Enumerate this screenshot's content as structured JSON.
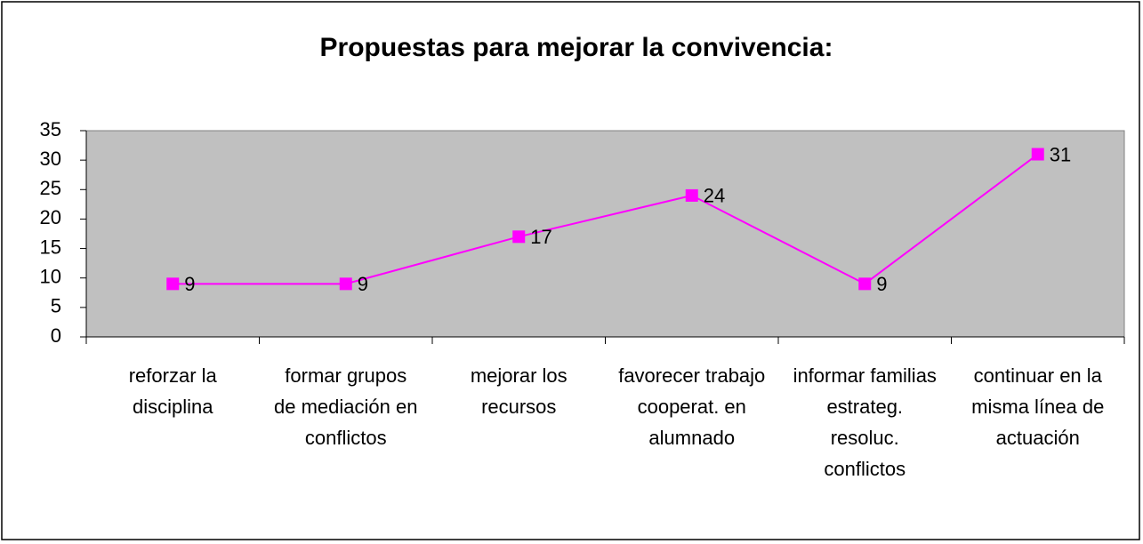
{
  "chart_data": {
    "type": "line",
    "title": "Propuestas para mejorar la convivencia:",
    "categories": [
      "reforzar la disciplina",
      "formar grupos de mediación en conflictos",
      "mejorar los recursos",
      "favorecer trabajo cooperat. en alumnado",
      "informar familias estrateg. resoluc. conflictos",
      "continuar en la misma línea de actuación"
    ],
    "series": [
      {
        "color": "#ff00ff",
        "values": [
          9,
          9,
          17,
          24,
          9,
          31
        ]
      }
    ],
    "ylim": [
      0,
      35
    ],
    "yticks": [
      0,
      5,
      10,
      15,
      20,
      25,
      30,
      35
    ],
    "plot_background": "#c0c0c0"
  }
}
